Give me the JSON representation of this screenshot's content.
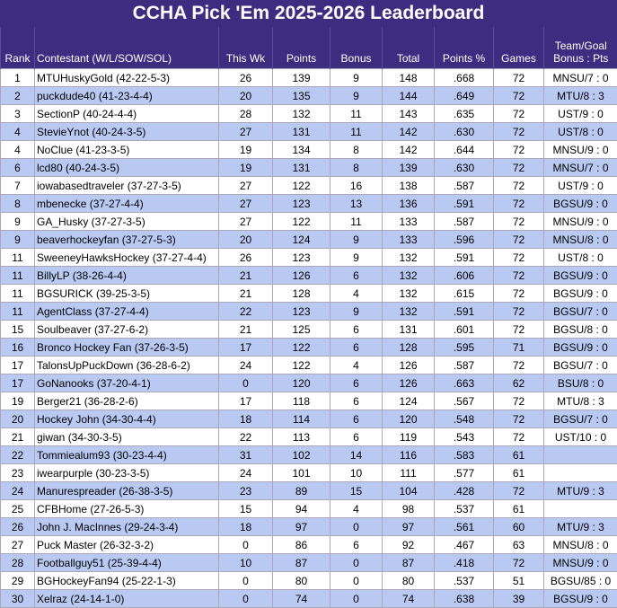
{
  "title": "CCHA Pick 'Em 2025-2026 Leaderboard",
  "table": {
    "header": [
      "Rank",
      "Contestant (W/L/SOW/SOL)",
      "This Wk",
      "Points",
      "Bonus",
      "Total",
      "Points %",
      "Games",
      "Team/Goal Bonus : Pts"
    ],
    "rows": [
      [
        "1",
        "MTUHuskyGold (42-22-5-3)",
        "26",
        "139",
        "9",
        "148",
        ".668",
        "72",
        "MNSU/7 : 0"
      ],
      [
        "2",
        "puckdude40 (41-23-4-4)",
        "20",
        "135",
        "9",
        "144",
        ".649",
        "72",
        "MTU/8 : 3"
      ],
      [
        "3",
        "SectionP (40-24-4-4)",
        "28",
        "132",
        "11",
        "143",
        ".635",
        "72",
        "UST/9 : 0"
      ],
      [
        "4",
        "StevieYnot (40-24-3-5)",
        "27",
        "131",
        "11",
        "142",
        ".630",
        "72",
        "UST/8 : 0"
      ],
      [
        "4",
        "NoClue (41-23-3-5)",
        "19",
        "134",
        "8",
        "142",
        ".644",
        "72",
        "MNSU/9 : 0"
      ],
      [
        "6",
        "lcd80 (40-24-3-5)",
        "19",
        "131",
        "8",
        "139",
        ".630",
        "72",
        "MNSU/7 : 0"
      ],
      [
        "7",
        "iowabasedtraveler (37-27-3-5)",
        "27",
        "122",
        "16",
        "138",
        ".587",
        "72",
        "UST/9 : 0"
      ],
      [
        "8",
        "mbenecke (37-27-4-4)",
        "27",
        "123",
        "13",
        "136",
        ".591",
        "72",
        "BGSU/9 : 0"
      ],
      [
        "9",
        "GA_Husky (37-27-3-5)",
        "27",
        "122",
        "11",
        "133",
        ".587",
        "72",
        "MNSU/9 : 0"
      ],
      [
        "9",
        "beaverhockeyfan (37-27-5-3)",
        "20",
        "124",
        "9",
        "133",
        ".596",
        "72",
        "MNSU/8 : 0"
      ],
      [
        "11",
        "SweeneyHawksHockey (37-27-4-4)",
        "26",
        "123",
        "9",
        "132",
        ".591",
        "72",
        "UST/8 : 0"
      ],
      [
        "11",
        "BillyLP (38-26-4-4)",
        "21",
        "126",
        "6",
        "132",
        ".606",
        "72",
        "BGSU/9 : 0"
      ],
      [
        "11",
        "BGSURICK (39-25-3-5)",
        "21",
        "128",
        "4",
        "132",
        ".615",
        "72",
        "BGSU/9 : 0"
      ],
      [
        "11",
        "AgentClass (37-27-4-4)",
        "22",
        "123",
        "9",
        "132",
        ".591",
        "72",
        "BGSU/7 : 0"
      ],
      [
        "15",
        "Soulbeaver (37-27-6-2)",
        "21",
        "125",
        "6",
        "131",
        ".601",
        "72",
        "BGSU/8 : 0"
      ],
      [
        "16",
        "Bronco Hockey Fan (37-26-3-5)",
        "17",
        "122",
        "6",
        "128",
        ".595",
        "71",
        "BGSU/9 : 0"
      ],
      [
        "17",
        "TalonsUpPuckDown (36-28-6-2)",
        "24",
        "122",
        "4",
        "126",
        ".587",
        "72",
        "BGSU/7 : 0"
      ],
      [
        "17",
        "GoNanooks (37-20-4-1)",
        "0",
        "120",
        "6",
        "126",
        ".663",
        "62",
        "BSU/8 : 0"
      ],
      [
        "19",
        "Berger21 (36-28-2-6)",
        "17",
        "118",
        "6",
        "124",
        ".567",
        "72",
        "MTU/8 : 3"
      ],
      [
        "20",
        "Hockey John (34-30-4-4)",
        "18",
        "114",
        "6",
        "120",
        ".548",
        "72",
        "BGSU/7 : 0"
      ],
      [
        "21",
        "giwan (34-30-3-5)",
        "22",
        "113",
        "6",
        "119",
        ".543",
        "72",
        "UST/10 : 0"
      ],
      [
        "22",
        "Tommiealum93 (30-23-4-4)",
        "31",
        "102",
        "14",
        "116",
        ".583",
        "61"
      ],
      [
        "23",
        "iwearpurple (30-23-3-5)",
        "24",
        "101",
        "10",
        "111",
        ".577",
        "61"
      ],
      [
        "24",
        "Manurespreader (26-38-3-5)",
        "23",
        "89",
        "15",
        "104",
        ".428",
        "72",
        "MTU/9 : 3"
      ],
      [
        "25",
        "CFBHome (27-26-5-3)",
        "15",
        "94",
        "4",
        "98",
        ".537",
        "61"
      ],
      [
        "26",
        "John J. MacInnes (29-24-3-4)",
        "18",
        "97",
        "0",
        "97",
        ".561",
        "60",
        "MTU/9 : 3"
      ],
      [
        "27",
        "Puck Master (26-32-3-2)",
        "0",
        "86",
        "6",
        "92",
        ".467",
        "63",
        "MNSU/8 : 0"
      ],
      [
        "28",
        "Footballguy51 (25-39-4-4)",
        "10",
        "87",
        "0",
        "87",
        ".418",
        "72",
        "MNSU/9 : 0"
      ],
      [
        "29",
        "BGHockeyFan94 (25-22-1-3)",
        "0",
        "80",
        "0",
        "80",
        ".537",
        "51",
        "BGSU/85 : 0"
      ],
      [
        "30",
        "Xelraz (24-14-1-0)",
        "0",
        "74",
        "0",
        "74",
        ".638",
        "39",
        "BGSU/9 : 0"
      ]
    ]
  }
}
